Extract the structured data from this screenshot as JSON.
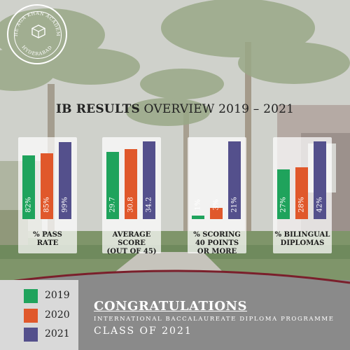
{
  "logo": {
    "text_top": "THE AGA KHAN ACADEMY",
    "text_bottom": "HYDERABAD"
  },
  "title": {
    "bold": "IB RESULTS",
    "rest": " OVERVIEW 2019 – 2021"
  },
  "colors": {
    "2019": "#1fa35c",
    "2020": "#e0582b",
    "2021": "#54508c"
  },
  "chart_data": [
    {
      "type": "bar",
      "title": "% PASS RATE",
      "categories": [
        "2019",
        "2020",
        "2021"
      ],
      "values": [
        82,
        85,
        99
      ],
      "labels": [
        "82%",
        "85%",
        "99%"
      ],
      "ylim": [
        0,
        100
      ]
    },
    {
      "type": "bar",
      "title": "AVERAGE SCORE (OUT OF 45)",
      "categories": [
        "2019",
        "2020",
        "2021"
      ],
      "values": [
        29.7,
        30.8,
        34.2
      ],
      "labels": [
        "29.7",
        "30.8",
        "34.2"
      ],
      "ylim": [
        0,
        34.2
      ]
    },
    {
      "type": "bar",
      "title": "% SCORING 40 POINTS OR MORE",
      "categories": [
        "2019",
        "2020",
        "2021"
      ],
      "values": [
        1,
        3,
        21
      ],
      "labels": [
        "1%",
        "3%",
        "21%"
      ],
      "ylim": [
        0,
        21
      ]
    },
    {
      "type": "bar",
      "title": "% BILINGUAL DIPLOMAS",
      "categories": [
        "2019",
        "2020",
        "2021"
      ],
      "values": [
        27,
        28,
        42
      ],
      "labels": [
        "27%",
        "28%",
        "42%"
      ],
      "ylim": [
        0,
        42
      ]
    }
  ],
  "category_labels": [
    "% PASS\nRATE",
    "AVERAGE\nSCORE\n(OUT OF 45)",
    "% SCORING\n40 POINTS\nOR MORE",
    "% BILINGUAL\nDIPLOMAS"
  ],
  "legend": [
    {
      "year": "2019",
      "color": "#1fa35c"
    },
    {
      "year": "2020",
      "color": "#e0582b"
    },
    {
      "year": "2021",
      "color": "#54508c"
    }
  ],
  "footer": {
    "congrats": "CONGRATULATIONS",
    "programme": "INTERNATIONAL BACCALAUREATE DIPLOMA PROGRAMME",
    "class": "CLASS OF 2021"
  }
}
